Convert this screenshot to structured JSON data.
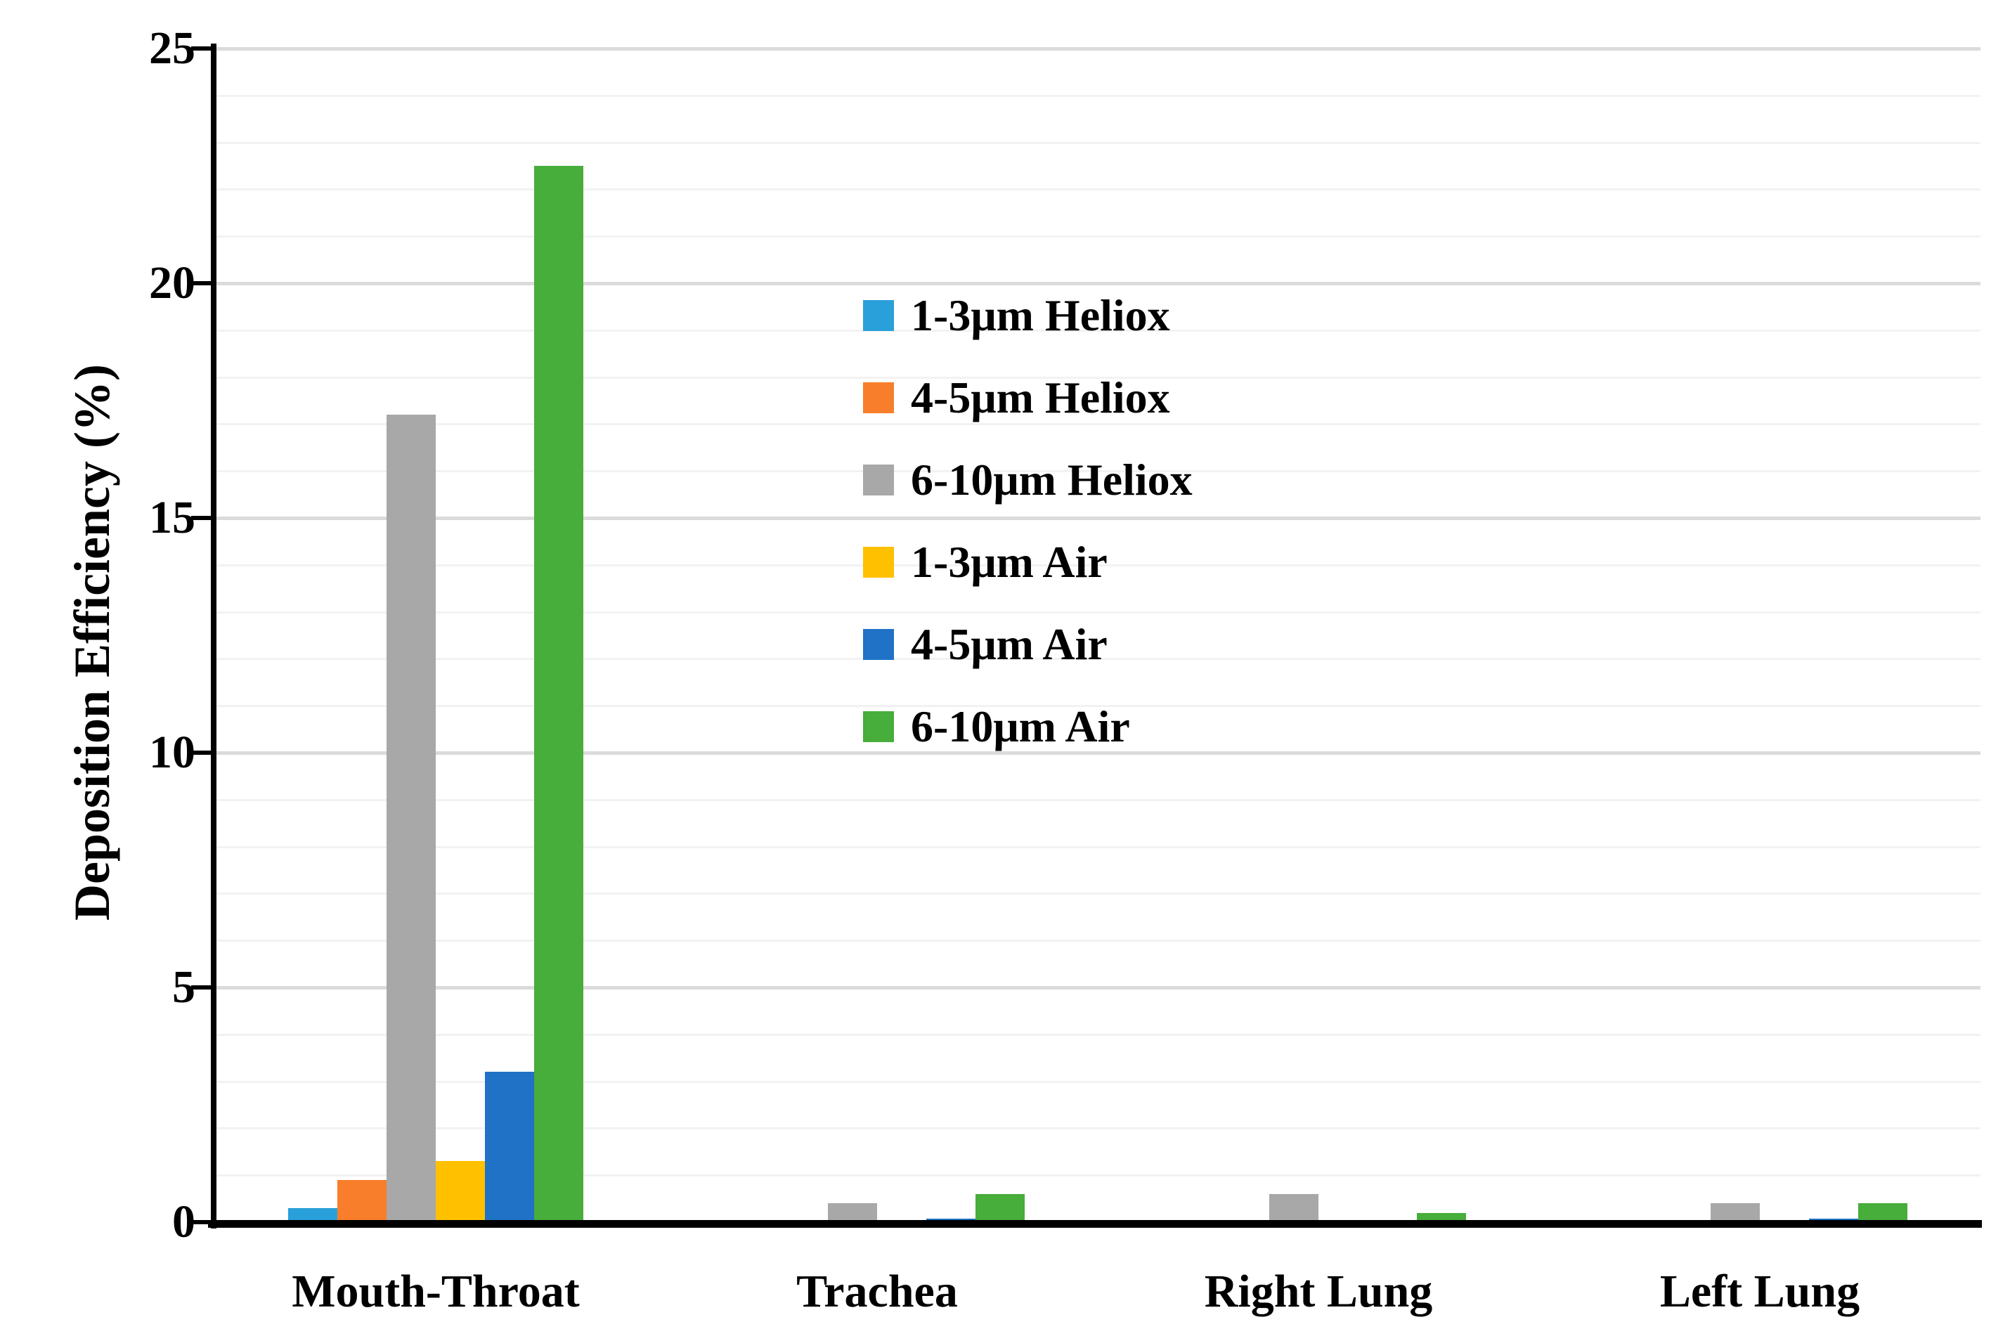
{
  "chart_data": {
    "type": "bar",
    "title": "",
    "xlabel": "",
    "ylabel": "Deposition Efficiency (%)",
    "ylim": [
      0,
      25
    ],
    "y_major_ticks": [
      0,
      5,
      10,
      15,
      20,
      25
    ],
    "y_tick_labels": [
      "0",
      "5",
      "10",
      "15",
      "20",
      "25"
    ],
    "y_minor_step": 1,
    "grid": "horizontal, minor every 1 unit, major every 5 units",
    "legend_position": "inside upper middle",
    "categories": [
      "Mouth-Throat",
      "Trachea",
      "Right Lung",
      "Left Lung"
    ],
    "series": [
      {
        "name": "1-3μm Heliox",
        "color": "#29A0DA",
        "values": [
          0.3,
          0,
          0,
          0
        ]
      },
      {
        "name": "4-5μm Heliox",
        "color": "#F87E2B",
        "values": [
          0.9,
          0,
          0,
          0
        ]
      },
      {
        "name": "6-10μm Heliox",
        "color": "#A8A8A8",
        "values": [
          17.2,
          0.4,
          0.6,
          0.4
        ]
      },
      {
        "name": "1-3μm Air",
        "color": "#FFC000",
        "values": [
          1.3,
          0.05,
          0,
          0.05
        ]
      },
      {
        "name": "4-5μm Air",
        "color": "#1F72C6",
        "values": [
          3.2,
          0.08,
          0,
          0.07
        ]
      },
      {
        "name": "6-10μm Air",
        "color": "#47AD3B",
        "values": [
          22.5,
          0.6,
          0.2,
          0.4
        ]
      }
    ],
    "axis_color": "#000000",
    "gridline_minor_color": "#f2f2f2",
    "gridline_major_color": "#dbdbdb"
  }
}
